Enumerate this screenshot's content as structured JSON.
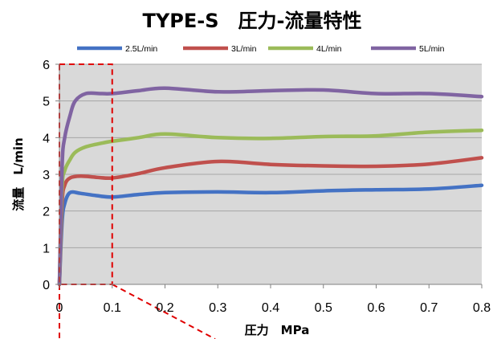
{
  "chart_data": {
    "type": "line",
    "title": "TYPE-S　圧力-流量特性",
    "xlabel": "圧力　MPa",
    "ylabel": "流量　L/min",
    "xlim": [
      0,
      0.8
    ],
    "ylim": [
      0,
      6
    ],
    "x_ticks": [
      "0",
      "0.1",
      "0.2",
      "0.3",
      "0.4",
      "0.5",
      "0.6",
      "0.7",
      "0.8"
    ],
    "y_ticks": [
      "0",
      "1",
      "2",
      "3",
      "4",
      "5",
      "6"
    ],
    "grid": true,
    "legend_position": "top",
    "plot_background": "#d9d9d9",
    "highlight_region": {
      "x": [
        0,
        0.1
      ],
      "y": [
        0,
        6
      ],
      "color": "#e00000",
      "style": "dashed"
    },
    "series": [
      {
        "name": "2.5L/min",
        "color": "#4472c4",
        "points": [
          [
            0,
            0
          ],
          [
            0.005,
            1.7
          ],
          [
            0.01,
            2.2
          ],
          [
            0.02,
            2.5
          ],
          [
            0.04,
            2.48
          ],
          [
            0.07,
            2.42
          ],
          [
            0.1,
            2.38
          ],
          [
            0.15,
            2.45
          ],
          [
            0.2,
            2.5
          ],
          [
            0.3,
            2.52
          ],
          [
            0.4,
            2.5
          ],
          [
            0.5,
            2.55
          ],
          [
            0.6,
            2.58
          ],
          [
            0.7,
            2.6
          ],
          [
            0.8,
            2.7
          ]
        ]
      },
      {
        "name": "3L/min",
        "color": "#c0504d",
        "points": [
          [
            0,
            0
          ],
          [
            0.005,
            2.2
          ],
          [
            0.01,
            2.7
          ],
          [
            0.02,
            2.9
          ],
          [
            0.04,
            2.95
          ],
          [
            0.07,
            2.92
          ],
          [
            0.1,
            2.9
          ],
          [
            0.15,
            3.02
          ],
          [
            0.2,
            3.18
          ],
          [
            0.3,
            3.35
          ],
          [
            0.4,
            3.27
          ],
          [
            0.5,
            3.23
          ],
          [
            0.6,
            3.22
          ],
          [
            0.7,
            3.28
          ],
          [
            0.8,
            3.45
          ]
        ]
      },
      {
        "name": "4L/min",
        "color": "#9bbb59",
        "points": [
          [
            0,
            0
          ],
          [
            0.005,
            2.6
          ],
          [
            0.01,
            3.1
          ],
          [
            0.02,
            3.4
          ],
          [
            0.03,
            3.6
          ],
          [
            0.05,
            3.75
          ],
          [
            0.08,
            3.85
          ],
          [
            0.1,
            3.9
          ],
          [
            0.15,
            4.0
          ],
          [
            0.2,
            4.1
          ],
          [
            0.3,
            4.0
          ],
          [
            0.4,
            3.98
          ],
          [
            0.5,
            4.03
          ],
          [
            0.6,
            4.05
          ],
          [
            0.7,
            4.15
          ],
          [
            0.8,
            4.2
          ]
        ]
      },
      {
        "name": "5L/min",
        "color": "#8064a2",
        "points": [
          [
            0,
            0
          ],
          [
            0.005,
            3.2
          ],
          [
            0.01,
            4.0
          ],
          [
            0.02,
            4.6
          ],
          [
            0.03,
            5.0
          ],
          [
            0.05,
            5.2
          ],
          [
            0.08,
            5.2
          ],
          [
            0.1,
            5.2
          ],
          [
            0.15,
            5.28
          ],
          [
            0.2,
            5.35
          ],
          [
            0.3,
            5.25
          ],
          [
            0.4,
            5.28
          ],
          [
            0.5,
            5.3
          ],
          [
            0.6,
            5.2
          ],
          [
            0.7,
            5.2
          ],
          [
            0.8,
            5.12
          ]
        ]
      }
    ]
  }
}
